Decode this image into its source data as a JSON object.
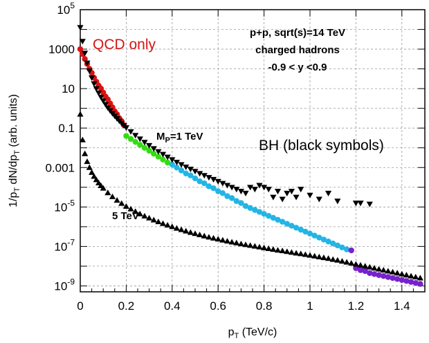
{
  "chart_data": {
    "type": "scatter",
    "xlabel": "p",
    "xlabel_sub": "T",
    "xlabel_unit": " (TeV/c)",
    "ylabel_parts": [
      "1/p",
      "T",
      " dN/dp",
      "T",
      " (arb. units)"
    ],
    "xlim": [
      0,
      1.5
    ],
    "ylim_log10": [
      -9.3,
      5
    ],
    "x_ticks": [
      "0",
      "0.2",
      "0.4",
      "0.6",
      "0.8",
      "1",
      "1.2",
      "1.4"
    ],
    "x_tick_values": [
      0,
      0.2,
      0.4,
      0.6,
      0.8,
      1.0,
      1.2,
      1.4
    ],
    "y_ticks": [
      {
        "exp": 5,
        "label": "10",
        "sup": "5"
      },
      {
        "exp": 3,
        "label": "1000",
        "sup": ""
      },
      {
        "exp": 1,
        "label": "10",
        "sup": ""
      },
      {
        "exp": -1,
        "label": "0.1",
        "sup": ""
      },
      {
        "exp": -3,
        "label": "0.001",
        "sup": ""
      },
      {
        "exp": -5,
        "label": "10",
        "sup": "-5"
      },
      {
        "exp": -7,
        "label": "10",
        "sup": "-7"
      },
      {
        "exp": -9,
        "label": "10",
        "sup": "-9"
      }
    ],
    "annotations": {
      "title_lines": [
        "p+p, sqrt(s)=14 TeV",
        "charged hadrons",
        "-0.9 < y <0.9"
      ],
      "qcd": "QCD only",
      "bh": "BH (black symbols)",
      "mp_main": "M",
      "mp_sub": "P",
      "mp_rest": "=1 TeV",
      "five": "5 TeV"
    },
    "colors": {
      "qcd_low": "#dd1111",
      "qcd_mid": "#33dd11",
      "qcd_high": "#22b5e6",
      "qcd_top": "#7722cc",
      "bh": "#000000",
      "qcd_label": "#d41414"
    },
    "series": [
      {
        "name": "QCD only",
        "marker": "circle",
        "segments": [
          {
            "color": "qcd_low",
            "x_range": [
              0.0,
              0.2
            ]
          },
          {
            "color": "qcd_mid",
            "x_range": [
              0.2,
              0.4
            ]
          },
          {
            "color": "qcd_high",
            "x_range": [
              0.4,
              1.18
            ]
          },
          {
            "color": "qcd_top",
            "x_range": [
              1.18,
              1.48
            ]
          }
        ],
        "points": [
          [
            0.0,
            3.0
          ],
          [
            0.01,
            2.75
          ],
          [
            0.02,
            2.5
          ],
          [
            0.03,
            2.25
          ],
          [
            0.04,
            2.0
          ],
          [
            0.05,
            1.8
          ],
          [
            0.06,
            1.55
          ],
          [
            0.07,
            1.35
          ],
          [
            0.08,
            1.15
          ],
          [
            0.09,
            1.0
          ],
          [
            0.1,
            0.8
          ],
          [
            0.11,
            0.6
          ],
          [
            0.12,
            0.45
          ],
          [
            0.13,
            0.25
          ],
          [
            0.14,
            0.05
          ],
          [
            0.15,
            -0.15
          ],
          [
            0.16,
            -0.3
          ],
          [
            0.17,
            -0.5
          ],
          [
            0.18,
            -0.65
          ],
          [
            0.19,
            -0.85
          ],
          [
            0.2,
            -1.4
          ],
          [
            0.22,
            -1.55
          ],
          [
            0.24,
            -1.7
          ],
          [
            0.26,
            -1.85
          ],
          [
            0.28,
            -2.0
          ],
          [
            0.3,
            -2.15
          ],
          [
            0.32,
            -2.3
          ],
          [
            0.34,
            -2.45
          ],
          [
            0.36,
            -2.6
          ],
          [
            0.38,
            -2.75
          ],
          [
            0.4,
            -2.85
          ],
          [
            0.42,
            -3.0
          ],
          [
            0.44,
            -3.15
          ],
          [
            0.46,
            -3.3
          ],
          [
            0.48,
            -3.4
          ],
          [
            0.5,
            -3.55
          ],
          [
            0.52,
            -3.7
          ],
          [
            0.54,
            -3.8
          ],
          [
            0.56,
            -3.95
          ],
          [
            0.58,
            -4.05
          ],
          [
            0.6,
            -4.2
          ],
          [
            0.62,
            -4.3
          ],
          [
            0.64,
            -4.45
          ],
          [
            0.66,
            -4.55
          ],
          [
            0.68,
            -4.7
          ],
          [
            0.7,
            -4.8
          ],
          [
            0.72,
            -4.95
          ],
          [
            0.74,
            -5.05
          ],
          [
            0.76,
            -5.15
          ],
          [
            0.78,
            -5.25
          ],
          [
            0.8,
            -5.35
          ],
          [
            0.82,
            -5.45
          ],
          [
            0.84,
            -5.55
          ],
          [
            0.86,
            -5.65
          ],
          [
            0.88,
            -5.75
          ],
          [
            0.9,
            -5.85
          ],
          [
            0.92,
            -5.95
          ],
          [
            0.94,
            -6.05
          ],
          [
            0.96,
            -6.15
          ],
          [
            0.98,
            -6.25
          ],
          [
            1.0,
            -6.35
          ],
          [
            1.02,
            -6.45
          ],
          [
            1.04,
            -6.55
          ],
          [
            1.06,
            -6.65
          ],
          [
            1.08,
            -6.75
          ],
          [
            1.1,
            -6.85
          ],
          [
            1.12,
            -6.95
          ],
          [
            1.14,
            -7.05
          ],
          [
            1.16,
            -7.15
          ],
          [
            1.18,
            -7.2
          ],
          [
            1.2,
            -8.1
          ],
          [
            1.22,
            -8.2
          ],
          [
            1.24,
            -8.25
          ],
          [
            1.26,
            -8.35
          ],
          [
            1.28,
            -8.4
          ],
          [
            1.3,
            -8.45
          ],
          [
            1.32,
            -8.5
          ],
          [
            1.34,
            -8.55
          ],
          [
            1.36,
            -8.6
          ],
          [
            1.38,
            -8.65
          ],
          [
            1.4,
            -8.7
          ],
          [
            1.42,
            -8.75
          ],
          [
            1.44,
            -8.8
          ],
          [
            1.46,
            -8.85
          ],
          [
            1.48,
            -8.9
          ]
        ]
      },
      {
        "name": "M_P=1 TeV",
        "marker": "triangle-down",
        "points": [
          [
            0.0,
            4.1
          ],
          [
            0.01,
            3.4
          ],
          [
            0.02,
            2.8
          ],
          [
            0.03,
            2.3
          ],
          [
            0.04,
            1.9
          ],
          [
            0.05,
            1.55
          ],
          [
            0.06,
            1.25
          ],
          [
            0.07,
            1.0
          ],
          [
            0.08,
            0.78
          ],
          [
            0.09,
            0.57
          ],
          [
            0.1,
            0.38
          ],
          [
            0.11,
            0.2
          ],
          [
            0.12,
            0.03
          ],
          [
            0.13,
            -0.12
          ],
          [
            0.14,
            -0.26
          ],
          [
            0.15,
            -0.39
          ],
          [
            0.16,
            -0.52
          ],
          [
            0.17,
            -0.64
          ],
          [
            0.18,
            -0.76
          ],
          [
            0.19,
            -0.87
          ],
          [
            0.2,
            -0.98
          ],
          [
            0.22,
            -1.18
          ],
          [
            0.24,
            -1.37
          ],
          [
            0.26,
            -1.55
          ],
          [
            0.28,
            -1.72
          ],
          [
            0.3,
            -1.88
          ],
          [
            0.32,
            -2.04
          ],
          [
            0.34,
            -2.19
          ],
          [
            0.36,
            -2.33
          ],
          [
            0.38,
            -2.47
          ],
          [
            0.4,
            -2.6
          ],
          [
            0.42,
            -2.73
          ],
          [
            0.44,
            -2.85
          ],
          [
            0.46,
            -2.97
          ],
          [
            0.48,
            -3.08
          ],
          [
            0.5,
            -3.19
          ],
          [
            0.52,
            -3.3
          ],
          [
            0.54,
            -3.4
          ],
          [
            0.56,
            -3.5
          ],
          [
            0.58,
            -3.6
          ],
          [
            0.6,
            -3.7
          ],
          [
            0.62,
            -3.8
          ],
          [
            0.64,
            -3.9
          ],
          [
            0.66,
            -4.0
          ],
          [
            0.68,
            -4.1
          ],
          [
            0.7,
            -4.2
          ],
          [
            0.72,
            -4.3
          ],
          [
            0.74,
            -4.0
          ],
          [
            0.76,
            -4.1
          ],
          [
            0.78,
            -3.9
          ],
          [
            0.8,
            -4.0
          ],
          [
            0.82,
            -4.1
          ],
          [
            0.84,
            -4.5
          ],
          [
            0.86,
            -4.2
          ],
          [
            0.88,
            -4.6
          ],
          [
            0.9,
            -4.3
          ],
          [
            0.92,
            -4.2
          ],
          [
            0.94,
            -4.5
          ],
          [
            0.96,
            -4.1
          ],
          [
            1.0,
            -4.4
          ],
          [
            1.04,
            -4.6
          ],
          [
            1.08,
            -4.3
          ],
          [
            1.12,
            -4.7
          ],
          [
            1.2,
            -4.8
          ],
          [
            1.22,
            -4.8
          ],
          [
            1.26,
            -4.85
          ]
        ]
      },
      {
        "name": "5 TeV",
        "marker": "triangle-up",
        "points": [
          [
            0.0,
            -0.3
          ],
          [
            0.01,
            -1.6
          ],
          [
            0.02,
            -2.3
          ],
          [
            0.03,
            -2.7
          ],
          [
            0.04,
            -3.0
          ],
          [
            0.05,
            -3.25
          ],
          [
            0.06,
            -3.45
          ],
          [
            0.07,
            -3.62
          ],
          [
            0.08,
            -3.78
          ],
          [
            0.09,
            -3.92
          ],
          [
            0.1,
            -4.05
          ],
          [
            0.12,
            -4.28
          ],
          [
            0.14,
            -4.48
          ],
          [
            0.16,
            -4.66
          ],
          [
            0.18,
            -4.82
          ],
          [
            0.2,
            -4.97
          ],
          [
            0.22,
            -5.1
          ],
          [
            0.24,
            -5.23
          ],
          [
            0.26,
            -5.35
          ],
          [
            0.28,
            -5.46
          ],
          [
            0.3,
            -5.56
          ],
          [
            0.32,
            -5.66
          ],
          [
            0.34,
            -5.75
          ],
          [
            0.36,
            -5.84
          ],
          [
            0.38,
            -5.92
          ],
          [
            0.4,
            -6.0
          ],
          [
            0.42,
            -6.08
          ],
          [
            0.44,
            -6.15
          ],
          [
            0.46,
            -6.22
          ],
          [
            0.48,
            -6.29
          ],
          [
            0.5,
            -6.35
          ],
          [
            0.52,
            -6.41
          ],
          [
            0.54,
            -6.47
          ],
          [
            0.56,
            -6.53
          ],
          [
            0.58,
            -6.58
          ],
          [
            0.6,
            -6.63
          ],
          [
            0.62,
            -6.68
          ],
          [
            0.64,
            -6.73
          ],
          [
            0.66,
            -6.78
          ],
          [
            0.68,
            -6.82
          ],
          [
            0.7,
            -6.87
          ],
          [
            0.72,
            -6.91
          ],
          [
            0.74,
            -6.95
          ],
          [
            0.76,
            -6.99
          ],
          [
            0.78,
            -7.03
          ],
          [
            0.8,
            -7.07
          ],
          [
            0.82,
            -7.11
          ],
          [
            0.84,
            -7.15
          ],
          [
            0.86,
            -7.19
          ],
          [
            0.88,
            -7.22
          ],
          [
            0.9,
            -7.26
          ],
          [
            0.92,
            -7.3
          ],
          [
            0.94,
            -7.34
          ],
          [
            0.96,
            -7.37
          ],
          [
            0.98,
            -7.41
          ],
          [
            1.0,
            -7.45
          ],
          [
            1.02,
            -7.49
          ],
          [
            1.04,
            -7.53
          ],
          [
            1.06,
            -7.57
          ],
          [
            1.08,
            -7.61
          ],
          [
            1.1,
            -7.66
          ],
          [
            1.12,
            -7.7
          ],
          [
            1.14,
            -7.75
          ],
          [
            1.16,
            -7.8
          ],
          [
            1.18,
            -7.85
          ],
          [
            1.2,
            -7.9
          ],
          [
            1.22,
            -7.95
          ],
          [
            1.24,
            -8.0
          ],
          [
            1.26,
            -8.05
          ],
          [
            1.28,
            -8.1
          ],
          [
            1.3,
            -8.15
          ],
          [
            1.32,
            -8.2
          ],
          [
            1.34,
            -8.25
          ],
          [
            1.36,
            -8.3
          ],
          [
            1.38,
            -8.35
          ],
          [
            1.4,
            -8.4
          ],
          [
            1.42,
            -8.45
          ],
          [
            1.44,
            -8.5
          ],
          [
            1.46,
            -8.55
          ],
          [
            1.48,
            -8.6
          ]
        ]
      }
    ]
  }
}
